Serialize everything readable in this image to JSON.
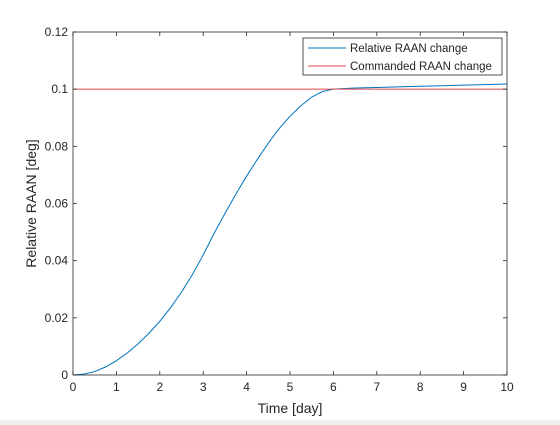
{
  "chart_data": {
    "type": "line",
    "title": "",
    "xlabel": "Time [day]",
    "ylabel": "Relative RAAN [deg]",
    "xlim": [
      0,
      10
    ],
    "ylim": [
      0,
      0.12
    ],
    "xticks": [
      0,
      1,
      2,
      3,
      4,
      5,
      6,
      7,
      8,
      9,
      10
    ],
    "xtick_labels": [
      "0",
      "1",
      "2",
      "3",
      "4",
      "5",
      "6",
      "7",
      "8",
      "9",
      "10"
    ],
    "yticks": [
      0,
      0.02,
      0.04,
      0.06,
      0.08,
      0.1,
      0.12
    ],
    "ytick_labels": [
      "0",
      "0.02",
      "0.04",
      "0.06",
      "0.08",
      "0.1",
      "0.12"
    ],
    "grid": false,
    "legend_position": "top-right",
    "series": [
      {
        "name": "Relative RAAN change",
        "color": "#0072bd",
        "x": [
          0,
          0.25,
          0.5,
          0.75,
          1,
          1.25,
          1.5,
          1.75,
          2,
          2.25,
          2.5,
          2.75,
          3,
          3.25,
          3.5,
          3.75,
          4,
          4.25,
          4.5,
          4.75,
          5,
          5.25,
          5.5,
          5.75,
          6,
          6.5,
          7,
          7.5,
          8,
          8.5,
          9,
          9.5,
          10
        ],
        "y": [
          0,
          0.0003,
          0.0012,
          0.0028,
          0.005,
          0.0077,
          0.0109,
          0.0146,
          0.0188,
          0.0236,
          0.029,
          0.0351,
          0.042,
          0.0495,
          0.0565,
          0.0632,
          0.0696,
          0.0755,
          0.0811,
          0.0862,
          0.0905,
          0.0942,
          0.0972,
          0.0992,
          0.1,
          0.1004,
          0.1006,
          0.1008,
          0.101,
          0.1012,
          0.1014,
          0.1016,
          0.1018
        ]
      },
      {
        "name": "Commanded RAAN change",
        "color": "#e04848",
        "x": [
          0,
          10
        ],
        "y": [
          0.1,
          0.1
        ]
      }
    ]
  }
}
